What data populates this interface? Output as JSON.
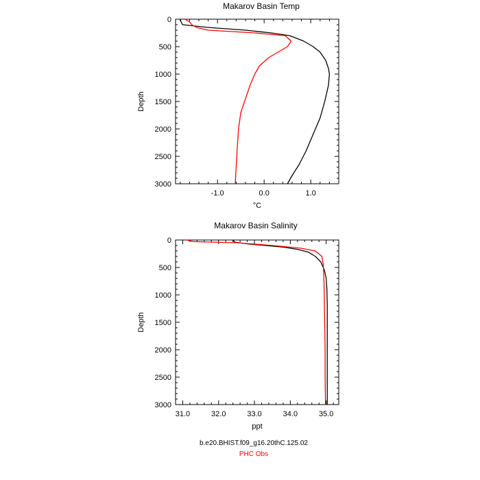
{
  "chart_data": [
    {
      "type": "line",
      "title": "Makarov Basin Temp",
      "xlabel": "°C",
      "ylabel": "Depth",
      "xlim": [
        -1.9,
        1.6
      ],
      "ylim": [
        0,
        3000
      ],
      "y_inverted": true,
      "x_ticks": [
        -1.0,
        0.0,
        1.0
      ],
      "x_tick_labels": [
        "-1.0",
        "0.0",
        "1.0"
      ],
      "y_ticks": [
        0,
        500,
        1000,
        1500,
        2000,
        2500,
        3000
      ],
      "y_tick_labels": [
        "0",
        "500",
        "1000",
        "1500",
        "2000",
        "2500",
        "3000"
      ],
      "grid": false,
      "series": [
        {
          "color": "#000000",
          "points": [
            [
              -1.8,
              0
            ],
            [
              -1.78,
              50
            ],
            [
              -1.75,
              100
            ],
            [
              -1.2,
              150
            ],
            [
              -0.4,
              200
            ],
            [
              0.15,
              250
            ],
            [
              0.55,
              300
            ],
            [
              0.85,
              400
            ],
            [
              1.05,
              500
            ],
            [
              1.2,
              600
            ],
            [
              1.32,
              750
            ],
            [
              1.38,
              900
            ],
            [
              1.4,
              1000
            ],
            [
              1.38,
              1200
            ],
            [
              1.3,
              1500
            ],
            [
              1.2,
              1800
            ],
            [
              1.05,
              2100
            ],
            [
              0.9,
              2400
            ],
            [
              0.75,
              2650
            ],
            [
              0.6,
              2850
            ],
            [
              0.5,
              3000
            ]
          ]
        },
        {
          "color": "#ff0000",
          "points": [
            [
              -1.7,
              0
            ],
            [
              -1.6,
              50
            ],
            [
              -1.55,
              100
            ],
            [
              -1.45,
              150
            ],
            [
              -1.2,
              200
            ],
            [
              -0.2,
              250
            ],
            [
              0.45,
              300
            ],
            [
              0.58,
              400
            ],
            [
              0.5,
              500
            ],
            [
              0.3,
              600
            ],
            [
              0.1,
              700
            ],
            [
              -0.1,
              850
            ],
            [
              -0.2,
              1000
            ],
            [
              -0.3,
              1200
            ],
            [
              -0.42,
              1500
            ],
            [
              -0.5,
              1700
            ],
            [
              -0.55,
              2000
            ],
            [
              -0.58,
              2400
            ],
            [
              -0.6,
              2700
            ],
            [
              -0.62,
              3000
            ]
          ]
        }
      ]
    },
    {
      "type": "line",
      "title": "Makarov Basin Salinity",
      "xlabel": "ppt",
      "ylabel": "Depth",
      "xlim": [
        30.8,
        35.35
      ],
      "ylim": [
        0,
        3000
      ],
      "y_inverted": true,
      "x_ticks": [
        31.0,
        32.0,
        33.0,
        34.0,
        35.0
      ],
      "x_tick_labels": [
        "31.0",
        "32.0",
        "33.0",
        "34.0",
        "35.0"
      ],
      "y_ticks": [
        0,
        500,
        1000,
        1500,
        2000,
        2500,
        3000
      ],
      "y_tick_labels": [
        "0",
        "500",
        "1000",
        "1500",
        "2000",
        "2500",
        "3000"
      ],
      "grid": false,
      "series": [
        {
          "color": "#000000",
          "points": [
            [
              32.4,
              0
            ],
            [
              32.45,
              40
            ],
            [
              32.8,
              70
            ],
            [
              33.3,
              100
            ],
            [
              33.8,
              130
            ],
            [
              34.2,
              170
            ],
            [
              34.5,
              220
            ],
            [
              34.7,
              300
            ],
            [
              34.85,
              400
            ],
            [
              34.95,
              550
            ],
            [
              35.0,
              700
            ],
            [
              35.02,
              900
            ],
            [
              35.03,
              1200
            ],
            [
              35.03,
              1600
            ],
            [
              35.03,
              2000
            ],
            [
              35.03,
              2500
            ],
            [
              35.03,
              3000
            ]
          ]
        },
        {
          "color": "#ff0000",
          "points": [
            [
              31.1,
              0
            ],
            [
              31.3,
              30
            ],
            [
              32.5,
              50
            ],
            [
              33.5,
              100
            ],
            [
              34.3,
              150
            ],
            [
              34.7,
              200
            ],
            [
              34.88,
              300
            ],
            [
              34.92,
              450
            ],
            [
              34.93,
              600
            ],
            [
              34.94,
              800
            ],
            [
              34.95,
              1200
            ],
            [
              34.96,
              1600
            ],
            [
              34.97,
              2000
            ],
            [
              34.97,
              2500
            ],
            [
              34.98,
              3000
            ]
          ]
        }
      ]
    }
  ],
  "footer": {
    "model_line": "b.e20.BHIST.f09_g16.20thC.125.02",
    "obs_line": "PHC Obs",
    "model_color": "#000000",
    "obs_color": "#ff0000"
  }
}
